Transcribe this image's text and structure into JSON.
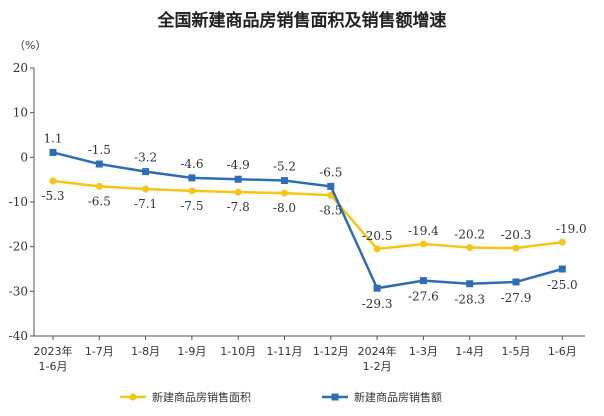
{
  "chart_data": {
    "type": "line",
    "title": "全国新建商品房销售面积及销售额增速",
    "unit": "（%）",
    "categories": [
      "2023年\n1-6月",
      "1-7月",
      "1-8月",
      "1-9月",
      "1-10月",
      "1-11月",
      "1-12月",
      "2024年\n1-2月",
      "1-3月",
      "1-4月",
      "1-5月",
      "1-6月"
    ],
    "ylim": [
      -40,
      20
    ],
    "yticks": [
      20,
      10,
      0,
      -10,
      -20,
      -30,
      -40
    ],
    "grid": false,
    "legend_position": "bottom",
    "series": [
      {
        "name": "新建商品房销售面积",
        "color": "#F5C518",
        "values": [
          -5.3,
          -6.5,
          -7.1,
          -7.5,
          -7.8,
          -8.0,
          -8.5,
          -20.5,
          -19.4,
          -20.2,
          -20.3,
          -19.0
        ],
        "labels": [
          "-5.3",
          "-6.5",
          "-7.1",
          "-7.5",
          "-7.8",
          "-8.0",
          "-8.5",
          "-20.5",
          "-19.4",
          "-20.2",
          "-20.3",
          "-19.0"
        ]
      },
      {
        "name": "新建商品房销售额",
        "color": "#2E6DB4",
        "values": [
          1.1,
          -1.5,
          -3.2,
          -4.6,
          -4.9,
          -5.2,
          -6.5,
          -29.3,
          -27.6,
          -28.3,
          -27.9,
          -25.0
        ],
        "labels": [
          "1.1",
          "-1.5",
          "-3.2",
          "-4.6",
          "-4.9",
          "-5.2",
          "-6.5",
          "-29.3",
          "-27.6",
          "-28.3",
          "-27.9",
          "-25.0"
        ]
      }
    ]
  }
}
